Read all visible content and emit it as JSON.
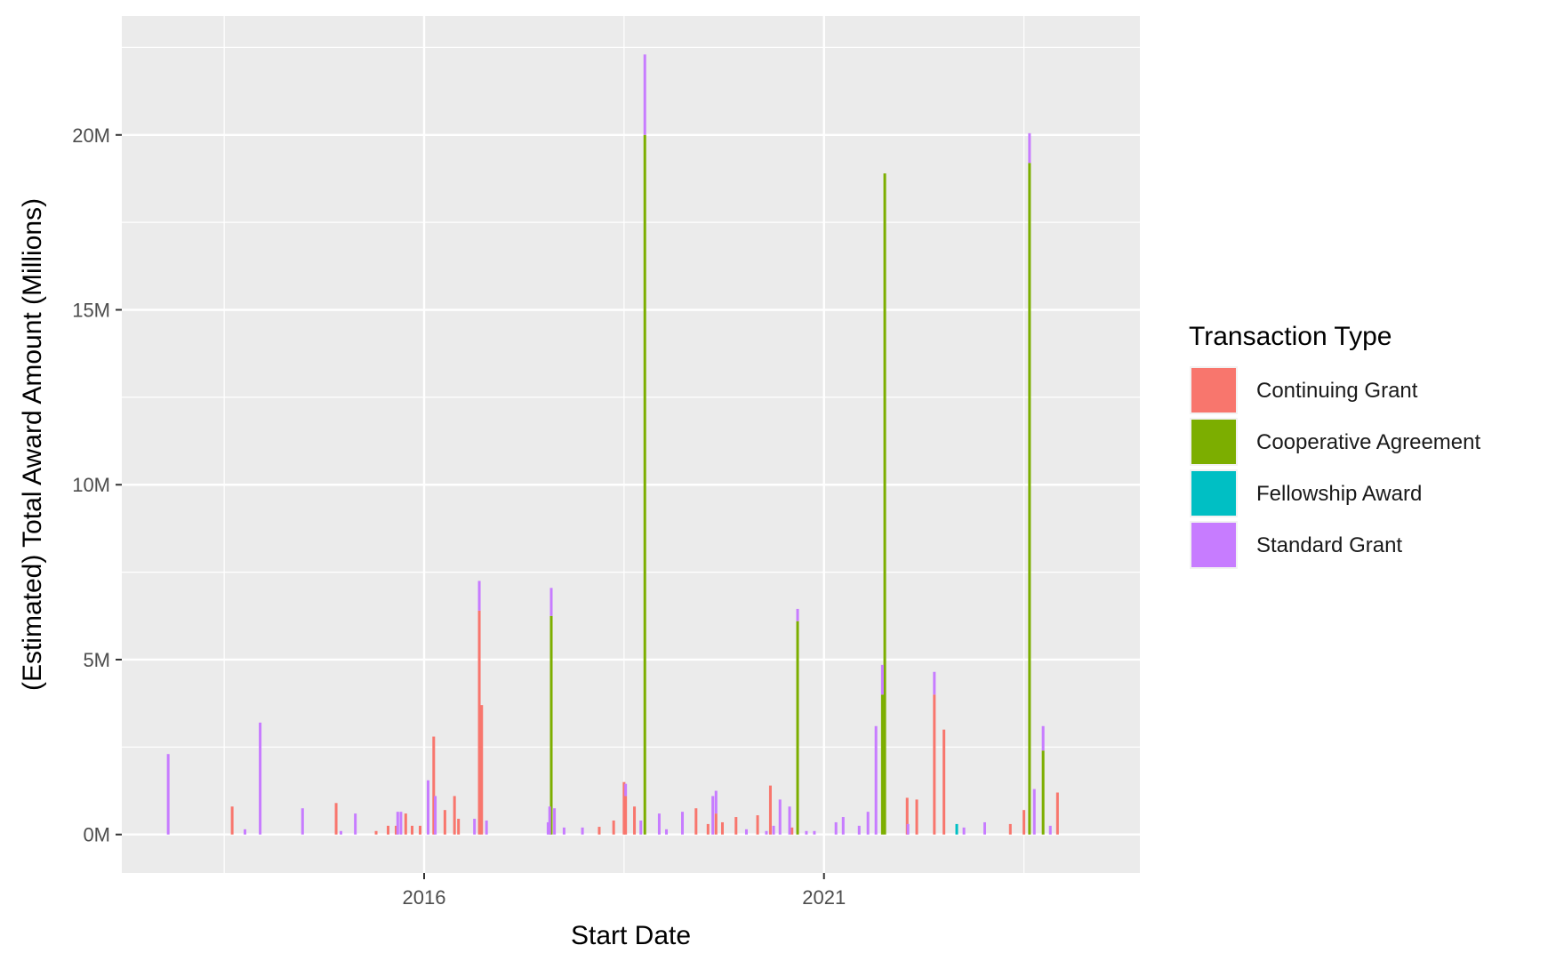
{
  "chart_data": {
    "type": "bar",
    "stacked": true,
    "title": "",
    "xlabel": "Start Date",
    "ylabel": "(Estimated) Total Award Amount (Millions)",
    "x_unit": "year",
    "xlim": [
      2012.22,
      2024.95
    ],
    "ylim": [
      -1.1,
      23.4
    ],
    "x_ticks": [
      2016,
      2021
    ],
    "x_tick_labels": [
      "2016",
      "2021"
    ],
    "y_ticks": [
      0,
      5,
      10,
      15,
      20
    ],
    "y_tick_labels": [
      "0M",
      "5M",
      "10M",
      "15M",
      "20M"
    ],
    "grid": true,
    "legend_position": "right",
    "legend_title": "Transaction Type",
    "series": [
      {
        "name": "Continuing Grant",
        "color": "#F8766D",
        "points": [
          {
            "x": 2013.6,
            "y": 0.8
          },
          {
            "x": 2014.9,
            "y": 0.9
          },
          {
            "x": 2015.4,
            "y": 0.1
          },
          {
            "x": 2015.55,
            "y": 0.25
          },
          {
            "x": 2015.65,
            "y": 0.25
          },
          {
            "x": 2015.85,
            "y": 0.25
          },
          {
            "x": 2015.95,
            "y": 0.25
          },
          {
            "x": 2015.77,
            "y": 0.6
          },
          {
            "x": 2016.12,
            "y": 2.8
          },
          {
            "x": 2016.26,
            "y": 0.7
          },
          {
            "x": 2016.38,
            "y": 1.1
          },
          {
            "x": 2016.43,
            "y": 0.45
          },
          {
            "x": 2016.69,
            "y": 6.4
          },
          {
            "x": 2016.72,
            "y": 3.7
          },
          {
            "x": 2018.19,
            "y": 0.22
          },
          {
            "x": 2018.37,
            "y": 0.4
          },
          {
            "x": 2018.63,
            "y": 0.8
          },
          {
            "x": 2018.5,
            "y": 1.5
          },
          {
            "x": 2018.52,
            "y": 1.1
          },
          {
            "x": 2019.4,
            "y": 0.75
          },
          {
            "x": 2019.55,
            "y": 0.3
          },
          {
            "x": 2019.65,
            "y": 0.6
          },
          {
            "x": 2019.73,
            "y": 0.35
          },
          {
            "x": 2019.9,
            "y": 0.5
          },
          {
            "x": 2020.17,
            "y": 0.55
          },
          {
            "x": 2020.33,
            "y": 1.4
          },
          {
            "x": 2020.6,
            "y": 0.2
          },
          {
            "x": 2022.04,
            "y": 1.05
          },
          {
            "x": 2022.16,
            "y": 1.0
          },
          {
            "x": 2022.38,
            "y": 4.0
          },
          {
            "x": 2022.5,
            "y": 3.0
          },
          {
            "x": 2023.33,
            "y": 0.3
          },
          {
            "x": 2023.5,
            "y": 0.7
          },
          {
            "x": 2023.92,
            "y": 1.2
          }
        ]
      },
      {
        "name": "Cooperative Agreement",
        "color": "#7CAE00",
        "points": [
          {
            "x": 2017.59,
            "y": 6.25
          },
          {
            "x": 2018.76,
            "y": 20.0
          },
          {
            "x": 2020.67,
            "y": 6.1
          },
          {
            "x": 2021.73,
            "y": 4.0
          },
          {
            "x": 2021.76,
            "y": 18.9
          },
          {
            "x": 2023.57,
            "y": 19.2
          },
          {
            "x": 2023.74,
            "y": 2.4
          }
        ]
      },
      {
        "name": "Fellowship Award",
        "color": "#00BFC4",
        "points": [
          {
            "x": 2022.66,
            "y": 0.3
          }
        ]
      },
      {
        "name": "Standard Grant",
        "color": "#C77CFF",
        "points": [
          {
            "x": 2012.8,
            "y": 2.3
          },
          {
            "x": 2013.76,
            "y": 0.15
          },
          {
            "x": 2013.95,
            "y": 3.2
          },
          {
            "x": 2014.48,
            "y": 0.75
          },
          {
            "x": 2014.96,
            "y": 0.1
          },
          {
            "x": 2015.14,
            "y": 0.6
          },
          {
            "x": 2015.67,
            "y": 0.65
          },
          {
            "x": 2015.71,
            "y": 0.65
          },
          {
            "x": 2016.05,
            "y": 1.55
          },
          {
            "x": 2016.14,
            "y": 1.1
          },
          {
            "x": 2016.63,
            "y": 0.45
          },
          {
            "x": 2016.69,
            "y": 0.85
          },
          {
            "x": 2016.78,
            "y": 0.4
          },
          {
            "x": 2017.55,
            "y": 0.35
          },
          {
            "x": 2017.57,
            "y": 0.8
          },
          {
            "x": 2017.59,
            "y": 0.8
          },
          {
            "x": 2017.63,
            "y": 0.75
          },
          {
            "x": 2017.75,
            "y": 0.2
          },
          {
            "x": 2017.98,
            "y": 0.2
          },
          {
            "x": 2018.52,
            "y": 0.35
          },
          {
            "x": 2018.71,
            "y": 0.4
          },
          {
            "x": 2018.76,
            "y": 2.3
          },
          {
            "x": 2018.94,
            "y": 0.6
          },
          {
            "x": 2019.03,
            "y": 0.15
          },
          {
            "x": 2019.23,
            "y": 0.65
          },
          {
            "x": 2019.61,
            "y": 1.1
          },
          {
            "x": 2019.65,
            "y": 0.65
          },
          {
            "x": 2020.03,
            "y": 0.15
          },
          {
            "x": 2020.28,
            "y": 0.1
          },
          {
            "x": 2020.37,
            "y": 0.25
          },
          {
            "x": 2020.45,
            "y": 1.0
          },
          {
            "x": 2020.57,
            "y": 0.8
          },
          {
            "x": 2020.67,
            "y": 0.35
          },
          {
            "x": 2020.78,
            "y": 0.1
          },
          {
            "x": 2020.88,
            "y": 0.1
          },
          {
            "x": 2021.15,
            "y": 0.35
          },
          {
            "x": 2021.24,
            "y": 0.5
          },
          {
            "x": 2021.44,
            "y": 0.25
          },
          {
            "x": 2021.55,
            "y": 0.65
          },
          {
            "x": 2021.65,
            "y": 3.1
          },
          {
            "x": 2021.73,
            "y": 0.85
          },
          {
            "x": 2022.05,
            "y": 0.3
          },
          {
            "x": 2022.38,
            "y": 0.65
          },
          {
            "x": 2022.75,
            "y": 0.2
          },
          {
            "x": 2023.01,
            "y": 0.35
          },
          {
            "x": 2023.57,
            "y": 0.85
          },
          {
            "x": 2023.63,
            "y": 1.3
          },
          {
            "x": 2023.74,
            "y": 0.7
          },
          {
            "x": 2023.83,
            "y": 0.25
          }
        ]
      }
    ]
  }
}
